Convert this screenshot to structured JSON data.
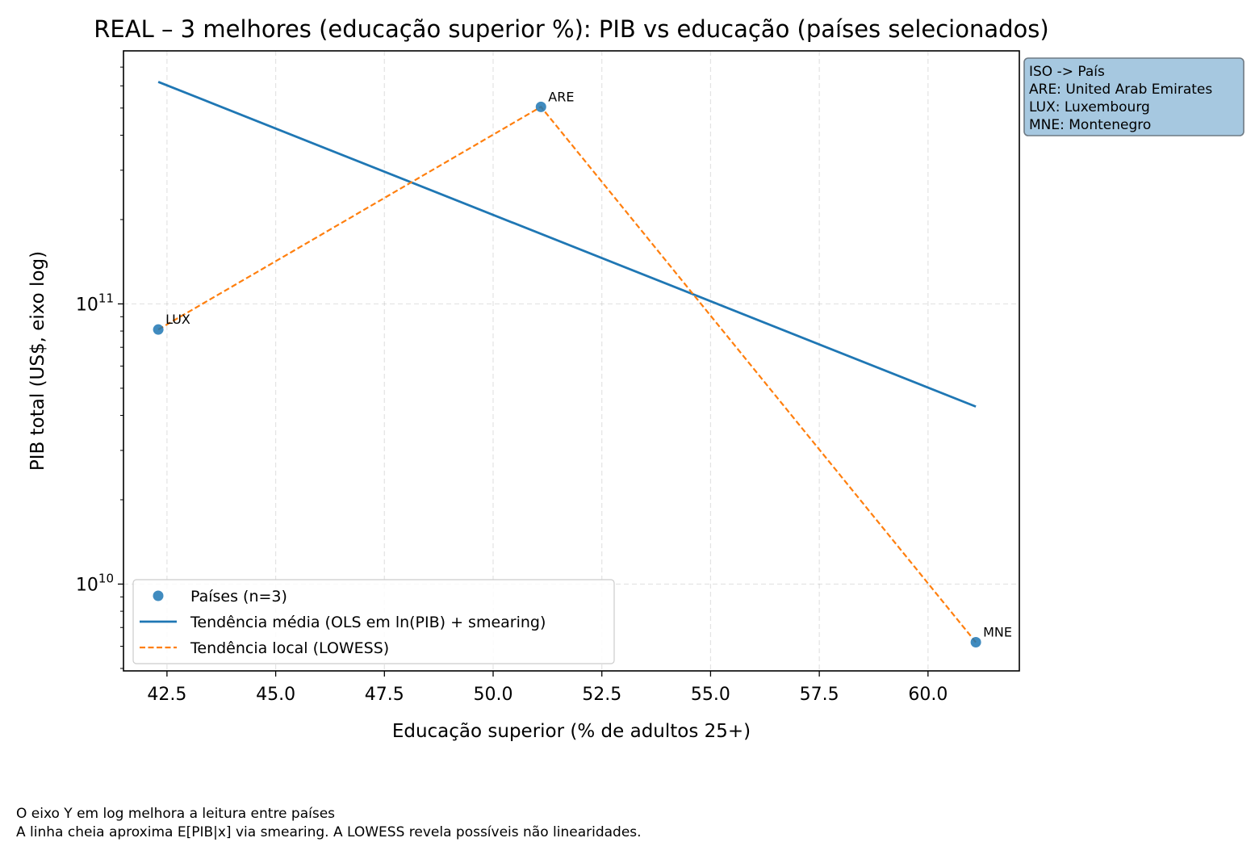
{
  "chart_data": {
    "type": "scatter",
    "title": "REAL – 3 melhores (educação superior %): PIB vs educação (países selecionados)",
    "xlabel": "Educação superior (% de adultos 25+)",
    "ylabel": "PIB total (US$, eixo log)",
    "x_scale": "linear",
    "y_scale": "log",
    "xlim": [
      41.5,
      62.1
    ],
    "ylim": [
      4900000000.0,
      800000000000.0
    ],
    "x_ticks": [
      42.5,
      45.0,
      47.5,
      50.0,
      52.5,
      55.0,
      57.5,
      60.0
    ],
    "x_tick_labels": [
      "42.5",
      "45.0",
      "47.5",
      "50.0",
      "52.5",
      "55.0",
      "57.5",
      "60.0"
    ],
    "y_major_ticks": [
      10000000000.0,
      100000000000.0
    ],
    "y_major_tick_labels": [
      {
        "base": "10",
        "exp": "10"
      },
      {
        "base": "10",
        "exp": "11"
      }
    ],
    "y_minor_ticks": [
      5000000000.0,
      6000000000.0,
      7000000000.0,
      8000000000.0,
      9000000000.0,
      20000000000.0,
      30000000000.0,
      40000000000.0,
      50000000000.0,
      60000000000.0,
      70000000000.0,
      80000000000.0,
      90000000000.0,
      200000000000.0,
      300000000000.0,
      400000000000.0,
      500000000000.0,
      600000000000.0,
      700000000000.0
    ],
    "grid": true,
    "points": [
      {
        "iso": "LUX",
        "x": 42.3,
        "y": 81000000000.0
      },
      {
        "iso": "ARE",
        "x": 51.1,
        "y": 505000000000.0
      },
      {
        "iso": "MNE",
        "x": 61.1,
        "y": 6200000000.0
      }
    ],
    "series": [
      {
        "name": "Países (n=3)",
        "kind": "scatter",
        "color": "#1f77b4"
      },
      {
        "name": "Tendência média (OLS em ln(PIB) + smearing)",
        "kind": "line",
        "color": "#1f77b4",
        "dash": "solid",
        "x": [
          42.3,
          61.1
        ],
        "y": [
          620000000000.0,
          43000000000.0
        ]
      },
      {
        "name": "Tendência local (LOWESS)",
        "kind": "line",
        "color": "#ff7f0e",
        "dash": "dashed",
        "x": [
          42.3,
          51.1,
          61.1
        ],
        "y": [
          81000000000.0,
          505000000000.0,
          6200000000.0
        ]
      }
    ],
    "legend_position": "lower-left",
    "iso_box": {
      "title": "ISO -> País",
      "entries": [
        "ARE: United Arab Emirates",
        "LUX: Luxembourg",
        "MNE: Montenegro"
      ],
      "position": "outside-top-right",
      "background": "#a6c8e0"
    }
  },
  "footnote": {
    "line1": "O eixo Y em log melhora a leitura entre países",
    "line2": "A linha cheia aproxima E[PIB|x] via smearing. A LOWESS revela possíveis não linearidades."
  }
}
